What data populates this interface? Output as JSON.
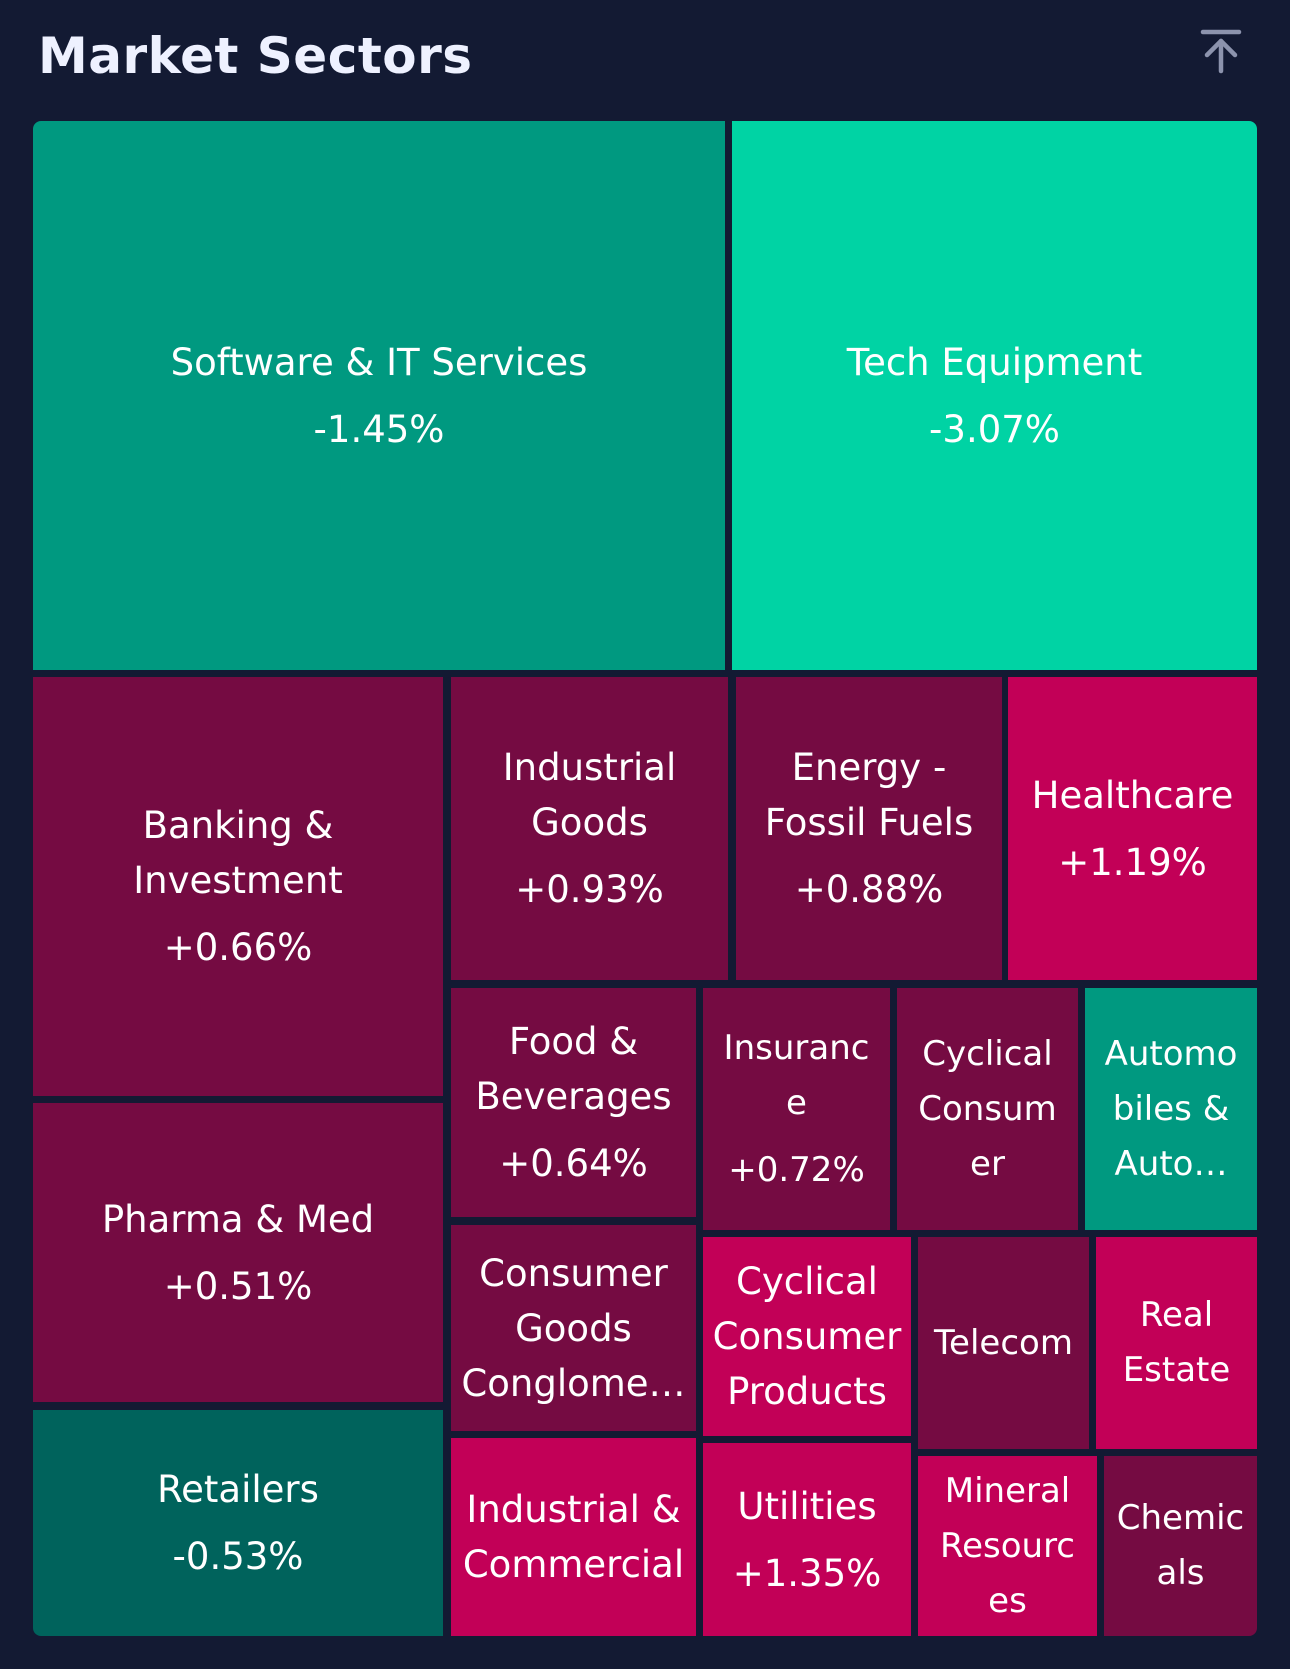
{
  "header": {
    "title": "Market Sectors",
    "scroll_top_icon": "arrow-up-to-line-icon"
  },
  "colors": {
    "background": "#131a33",
    "title": "#eef1ff",
    "icon": "#8c93ad"
  },
  "chart_data": {
    "type": "treemap",
    "title": "Market Sectors",
    "unit": "%",
    "tiles": [
      {
        "name": "Software & IT Services",
        "value": "-1.45%",
        "change": -1.45,
        "color": "#009980"
      },
      {
        "name": "Tech Equipment",
        "value": "-3.07%",
        "change": -3.07,
        "color": "#00d3a4"
      },
      {
        "name": "Banking &\nInvestment",
        "value": "+0.66%",
        "change": 0.66,
        "color": "#750b42"
      },
      {
        "name": "Industrial\nGoods",
        "value": "+0.93%",
        "change": 0.93,
        "color": "#750b42"
      },
      {
        "name": "Energy -\nFossil Fuels",
        "value": "+0.88%",
        "change": 0.88,
        "color": "#750b42"
      },
      {
        "name": "Healthcare",
        "value": "+1.19%",
        "change": 1.19,
        "color": "#c20057"
      },
      {
        "name": "Pharma & Med",
        "value": "+0.51%",
        "change": 0.51,
        "color": "#750b42"
      },
      {
        "name": "Retailers",
        "value": "-0.53%",
        "change": -0.53,
        "color": "#00635c"
      },
      {
        "name": "Food &\nBeverages",
        "value": "+0.64%",
        "change": 0.64,
        "color": "#750b42"
      },
      {
        "name": "Insuranc\ne",
        "value": "+0.72%",
        "change": 0.72,
        "color": "#750b42"
      },
      {
        "name": "Cyclical\nConsum\ner",
        "value": "",
        "change": null,
        "color": "#750b42"
      },
      {
        "name": "Automo\nbiles &\nAuto…",
        "value": "",
        "change": null,
        "color": "#009980"
      },
      {
        "name": "Consumer\nGoods\nConglome…",
        "value": "",
        "change": null,
        "color": "#750b42"
      },
      {
        "name": "Cyclical\nConsumer\nProducts",
        "value": "",
        "change": null,
        "color": "#c20057"
      },
      {
        "name": "Telecom",
        "value": "",
        "change": null,
        "color": "#750b42"
      },
      {
        "name": "Real\nEstate",
        "value": "",
        "change": null,
        "color": "#c20057"
      },
      {
        "name": "Industrial &\nCommercial",
        "value": "",
        "change": null,
        "color": "#c20057"
      },
      {
        "name": "Utilities",
        "value": "+1.35%",
        "change": 1.35,
        "color": "#c20057"
      },
      {
        "name": "Mineral\nResourc\nes",
        "value": "",
        "change": null,
        "color": "#c20057"
      },
      {
        "name": "Chemic\nals",
        "value": "",
        "change": null,
        "color": "#750b42"
      }
    ]
  }
}
